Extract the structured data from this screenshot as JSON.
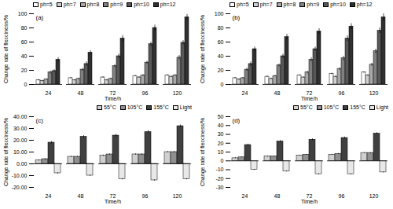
{
  "chart_data": [
    {
      "type": "bar",
      "annotations": [
        "(a)"
      ],
      "categories": [
        24,
        48,
        72,
        96,
        120
      ],
      "xlabel": "Time/h",
      "ylabel": "Change rate of flecciness/%",
      "series": [
        {
          "name": "ph=5",
          "color": "#ffffff",
          "values": [
            6,
            9,
            10,
            12,
            13
          ],
          "errors": [
            1,
            1,
            1,
            1,
            1
          ]
        },
        {
          "name": "ph=7",
          "color": "#d0d0d0",
          "values": [
            5,
            6,
            6,
            10,
            11
          ],
          "errors": [
            1,
            1,
            1,
            1,
            1
          ]
        },
        {
          "name": "ph=8",
          "color": "#a8a8a8",
          "values": [
            7,
            8,
            8,
            13,
            13
          ],
          "errors": [
            1,
            1,
            1,
            1,
            1
          ]
        },
        {
          "name": "ph=9",
          "color": "#808080",
          "values": [
            17,
            21,
            26,
            31,
            38
          ],
          "errors": [
            2,
            2,
            2,
            2,
            3
          ]
        },
        {
          "name": "ph=10",
          "color": "#585858",
          "values": [
            19,
            29,
            40,
            57,
            59
          ],
          "errors": [
            2,
            3,
            3,
            3,
            3
          ]
        },
        {
          "name": "ph=12",
          "color": "#303030",
          "values": [
            35,
            45,
            65,
            80,
            95
          ],
          "errors": [
            3,
            3,
            4,
            4,
            4
          ]
        }
      ],
      "ylim": [
        0,
        100
      ],
      "yticks": [
        0,
        20,
        40,
        60,
        80,
        100
      ],
      "legend": "upper left"
    },
    {
      "type": "bar",
      "annotations": [
        "(b)"
      ],
      "categories": [
        24,
        48,
        72,
        96,
        120
      ],
      "xlabel": "Time/h",
      "ylabel": "Change rate of flecciness/%",
      "series": [
        {
          "name": "ph=5",
          "color": "#ffffff",
          "values": [
            9,
            11,
            13,
            15,
            17
          ],
          "errors": [
            1,
            1,
            1,
            1,
            1
          ]
        },
        {
          "name": "ph=7",
          "color": "#d0d0d0",
          "values": [
            7,
            8,
            10,
            11,
            13
          ],
          "errors": [
            1,
            1,
            1,
            1,
            1
          ]
        },
        {
          "name": "ph=8",
          "color": "#a8a8a8",
          "values": [
            9,
            12,
            17,
            22,
            28
          ],
          "errors": [
            1,
            1,
            2,
            2,
            2
          ]
        },
        {
          "name": "ph=9",
          "color": "#808080",
          "values": [
            21,
            27,
            35,
            37,
            47
          ],
          "errors": [
            2,
            2,
            3,
            3,
            3
          ]
        },
        {
          "name": "ph=10",
          "color": "#585858",
          "values": [
            29,
            40,
            50,
            65,
            76
          ],
          "errors": [
            3,
            3,
            3,
            4,
            4
          ]
        },
        {
          "name": "ph=12",
          "color": "#303030",
          "values": [
            50,
            67,
            75,
            82,
            95
          ],
          "errors": [
            3,
            4,
            4,
            4,
            5
          ]
        }
      ],
      "ylim": [
        0,
        100
      ],
      "yticks": [
        0,
        20,
        40,
        60,
        80,
        100
      ],
      "legend": "upper left"
    },
    {
      "type": "bar",
      "annotations": [
        "(c)"
      ],
      "categories": [
        24,
        48,
        72,
        96,
        120
      ],
      "xlabel": "Time/h",
      "ylabel": "Change rate of flecciness/%",
      "series": [
        {
          "name": "55°C",
          "color": "#d0d0d0",
          "values": [
            3,
            6,
            7,
            8,
            10
          ],
          "errors": [
            0.5,
            0.5,
            0.5,
            0.5,
            0.5
          ]
        },
        {
          "name": "105°C",
          "color": "#909090",
          "values": [
            4,
            6,
            8,
            8,
            10
          ],
          "errors": [
            0.5,
            0.5,
            0.5,
            0.5,
            0.5
          ]
        },
        {
          "name": "155°C",
          "color": "#404040",
          "values": [
            18,
            23,
            24,
            27,
            32
          ],
          "errors": [
            1,
            1,
            1,
            1,
            1
          ]
        },
        {
          "name": "Light",
          "color": "#e8e8e8",
          "values": [
            -8,
            -10,
            -13,
            -14,
            -13
          ],
          "errors": [
            0.5,
            0.5,
            0.5,
            0.5,
            0.5
          ]
        }
      ],
      "ylim": [
        -20,
        40
      ],
      "yticks": [
        {
          "value": -20,
          "label": "-20.00"
        },
        {
          "value": -10,
          "label": "-10.00"
        },
        {
          "value": 0,
          "label": "0.00"
        },
        {
          "value": 10,
          "label": "10.00"
        },
        {
          "value": 20,
          "label": "20.00"
        },
        {
          "value": 30,
          "label": "30.00"
        },
        {
          "value": 40,
          "label": "40.00"
        }
      ],
      "legend": "upper right"
    },
    {
      "type": "bar",
      "annotations": [
        "(d)"
      ],
      "categories": [
        24,
        48,
        72,
        96,
        120
      ],
      "xlabel": "Time/h",
      "ylabel": "Change rate of flecciness/%",
      "series": [
        {
          "name": "55°C",
          "color": "#d0d0d0",
          "values": [
            3,
            5,
            6,
            7,
            9
          ],
          "errors": [
            0.5,
            0.5,
            0.5,
            0.5,
            0.5
          ]
        },
        {
          "name": "105°C",
          "color": "#909090",
          "values": [
            4,
            5,
            7,
            8,
            9
          ],
          "errors": [
            0.5,
            0.5,
            0.5,
            0.5,
            0.5
          ]
        },
        {
          "name": "155°C",
          "color": "#404040",
          "values": [
            18,
            22,
            24,
            26,
            31
          ],
          "errors": [
            1,
            1,
            1,
            1,
            1
          ]
        },
        {
          "name": "Light",
          "color": "#e8e8e8",
          "values": [
            -10,
            -12,
            -15,
            -15,
            -13
          ],
          "errors": [
            0.5,
            0.5,
            0.5,
            0.5,
            0.5
          ]
        }
      ],
      "ylim": [
        -30,
        50
      ],
      "yticks": [
        -30,
        -20,
        -10,
        0,
        10,
        20,
        30,
        40,
        50
      ],
      "legend": "upper right"
    }
  ]
}
